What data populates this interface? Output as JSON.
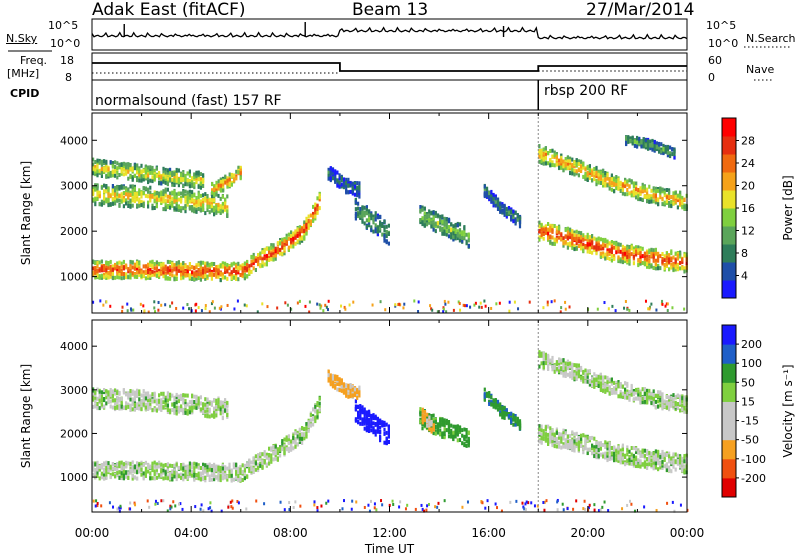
{
  "header": {
    "station": "Adak East (fitACF)",
    "beam": "Beam 13",
    "date": "27/Mar/2014"
  },
  "param_panels": {
    "nsky_label": "N.Sky",
    "nsearch_label": "N.Search",
    "noise_ticks": [
      "10^5",
      "10^0"
    ],
    "freq_label": "Freq.",
    "freq_unit": "[MHz]",
    "freq_ticks": [
      "18",
      "8"
    ],
    "nave_label": "Nave",
    "nave_ticks": [
      "60",
      "0"
    ],
    "cpid_label": "CPID",
    "programs": [
      {
        "name": "normalsound (fast) 157 RF",
        "start": 0
      },
      {
        "name": "rbsp 200 RF",
        "start": 18
      }
    ]
  },
  "colors": {
    "power": [
      "#1a1aff",
      "#1f4fa8",
      "#2e7d5a",
      "#5aa55a",
      "#7fcf3f",
      "#e9e22a",
      "#f5a21a",
      "#f06a10",
      "#e62f10",
      "#ff0000"
    ],
    "velocity": [
      "#e00000",
      "#f05010",
      "#f5a020",
      "#c8c8c8",
      "#c8c8c8",
      "#7fcf3f",
      "#2f9a2f",
      "#1f5fc8",
      "#1a1aff"
    ]
  },
  "chart_data": [
    {
      "type": "heatmap",
      "name": "power",
      "xlabel": "",
      "ylabel": "Slant Range [km]",
      "xlim": [
        0,
        24
      ],
      "ylim": [
        200,
        4600
      ],
      "yticks": [
        1000,
        2000,
        3000,
        4000
      ],
      "colorbar": {
        "label": "Power [dB]",
        "ticks": [
          "4",
          "8",
          "12",
          "16",
          "20",
          "24",
          "28"
        ],
        "range": [
          0,
          30
        ]
      },
      "bands": [
        {
          "t": [
            0,
            2,
            4,
            6,
            6.5,
            7.5,
            8.5,
            9.2
          ],
          "r": [
            1150,
            1150,
            1120,
            1100,
            1300,
            1600,
            2000,
            2700
          ],
          "width": 380,
          "power": 24
        },
        {
          "t": [
            0,
            2,
            4,
            5.5
          ],
          "r": [
            2800,
            2750,
            2650,
            2550
          ],
          "width": 450,
          "power": 17
        },
        {
          "t": [
            0,
            1.5,
            3,
            4.5
          ],
          "r": [
            3400,
            3300,
            3200,
            3100
          ],
          "width": 350,
          "power": 16
        },
        {
          "t": [
            4.8,
            5.5,
            6
          ],
          "r": [
            2900,
            3100,
            3300
          ],
          "width": 300,
          "power": 20
        },
        {
          "t": [
            18,
            19.5,
            21,
            22.5,
            24
          ],
          "r": [
            2000,
            1800,
            1550,
            1400,
            1300
          ],
          "width": 420,
          "power": 24
        },
        {
          "t": [
            18,
            19.5,
            21,
            22.5,
            24
          ],
          "r": [
            3700,
            3400,
            3050,
            2800,
            2650
          ],
          "width": 360,
          "power": 19
        },
        {
          "t": [
            21.5,
            22.5,
            23.5
          ],
          "r": [
            4000,
            3900,
            3700
          ],
          "width": 200,
          "power": 10
        },
        {
          "t": [
            13.2,
            14.2,
            15.2
          ],
          "r": [
            2350,
            2100,
            1850
          ],
          "width": 420,
          "power": 12
        },
        {
          "t": [
            10.6,
            11.3,
            12
          ],
          "r": [
            2500,
            2200,
            1900
          ],
          "width": 480,
          "power": 9
        },
        {
          "t": [
            15.8,
            16.5,
            17.3
          ],
          "r": [
            2900,
            2500,
            2200
          ],
          "width": 260,
          "power": 7
        },
        {
          "t": [
            9.5,
            10.2,
            10.8
          ],
          "r": [
            3300,
            3000,
            2900
          ],
          "width": 300,
          "power": 6
        }
      ]
    },
    {
      "type": "heatmap",
      "name": "velocity",
      "xlabel": "Time UT",
      "ylabel": "Slant Range [km]",
      "xlim": [
        0,
        24
      ],
      "ylim": [
        200,
        4600
      ],
      "xticks": [
        "00:00",
        "04:00",
        "08:00",
        "12:00",
        "16:00",
        "20:00",
        "00:00"
      ],
      "yticks": [
        1000,
        2000,
        3000,
        4000
      ],
      "colorbar": {
        "label": "Velocity [m s⁻¹]",
        "ticks": [
          "-200",
          "-100",
          "-50",
          "-15",
          "15",
          "50",
          "100",
          "200"
        ],
        "range": [
          -250,
          250
        ]
      },
      "bands": [
        {
          "t": [
            0,
            2,
            4,
            6,
            6.5,
            7.5,
            8.5,
            9.2
          ],
          "r": [
            1150,
            1150,
            1120,
            1100,
            1300,
            1600,
            2000,
            2700
          ],
          "width": 380,
          "velocity": 0
        },
        {
          "t": [
            0,
            2,
            4,
            5.5
          ],
          "r": [
            2800,
            2750,
            2650,
            2550
          ],
          "width": 450,
          "velocity": 0
        },
        {
          "t": [
            18,
            19.5,
            21,
            22.5,
            24
          ],
          "r": [
            2000,
            1800,
            1550,
            1400,
            1300
          ],
          "width": 420,
          "velocity": 0
        },
        {
          "t": [
            18,
            19.5,
            21,
            22.5,
            24
          ],
          "r": [
            3700,
            3400,
            3050,
            2800,
            2650
          ],
          "width": 360,
          "velocity": 0
        },
        {
          "t": [
            10.6,
            11.3,
            12
          ],
          "r": [
            2500,
            2200,
            1900
          ],
          "width": 480,
          "velocity": 180
        },
        {
          "t": [
            13.2,
            14.2,
            15.2
          ],
          "r": [
            2350,
            2100,
            1850
          ],
          "width": 420,
          "velocity": 30
        },
        {
          "t": [
            13.3,
            13.8
          ],
          "r": [
            2400,
            2100
          ],
          "width": 300,
          "velocity": -60
        },
        {
          "t": [
            15.8,
            16.5,
            17.3
          ],
          "r": [
            2900,
            2500,
            2200
          ],
          "width": 260,
          "velocity": 40
        },
        {
          "t": [
            9.5,
            10.2,
            10.8
          ],
          "r": [
            3300,
            3000,
            2900
          ],
          "width": 300,
          "velocity": -60
        }
      ]
    }
  ]
}
